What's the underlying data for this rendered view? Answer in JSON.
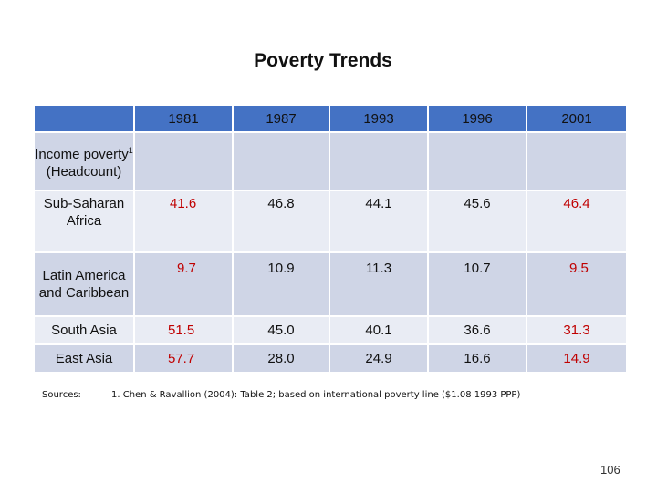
{
  "title": "Poverty Trends",
  "years": [
    "1981",
    "1987",
    "1993",
    "1996",
    "2001"
  ],
  "rows": [
    {
      "label": "Income poverty",
      "footnote": "1",
      "label_suffix": "(Headcount)",
      "values": [
        "",
        "",
        "",
        "",
        ""
      ]
    },
    {
      "label": "Sub-Saharan Africa",
      "values": [
        "41.6",
        "46.8",
        "44.1",
        "45.6",
        "46.4"
      ]
    },
    {
      "label": "Latin America and Caribbean",
      "values": [
        "9.7",
        "10.9",
        "11.3",
        "10.7",
        "9.5"
      ]
    },
    {
      "label": "South Asia",
      "values": [
        "51.5",
        "45.0",
        "40.1",
        "36.6",
        "31.3"
      ]
    },
    {
      "label": "East Asia",
      "values": [
        "57.7",
        "28.0",
        "24.9",
        "16.6",
        "14.9"
      ]
    }
  ],
  "sources_label": "Sources:",
  "source_note": "1.  Chen & Ravallion (2004): Table 2; based on international poverty line ($1.08 1993 PPP)",
  "page_number": "106",
  "colors": {
    "header": "#4472c4",
    "row_dark": "#cfd5e6",
    "row_light": "#e9ecf4",
    "highlight_text": "#c00000"
  }
}
